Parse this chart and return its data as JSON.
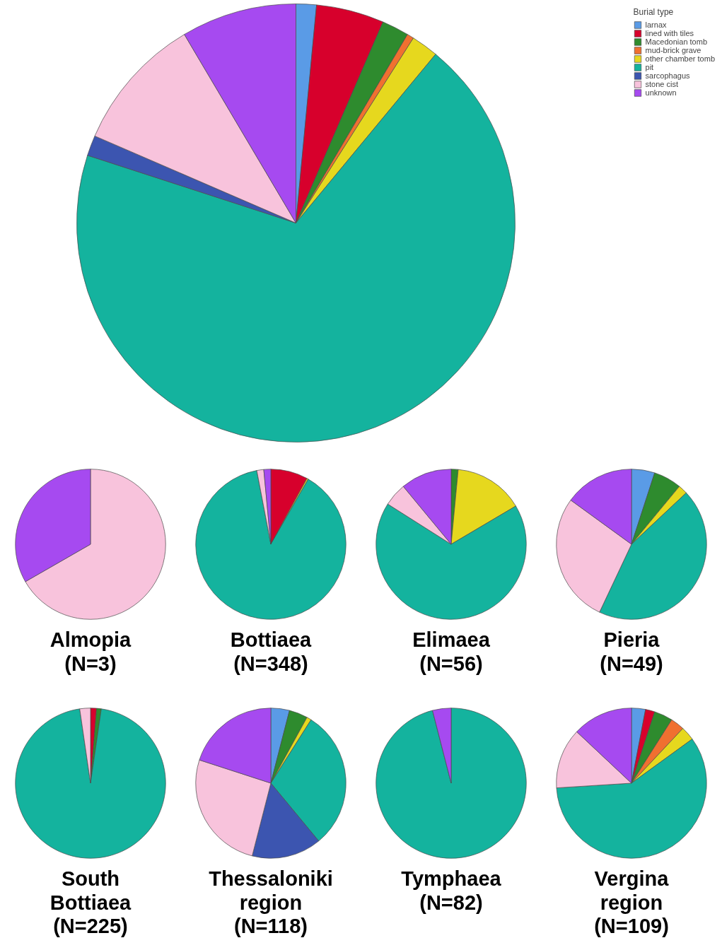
{
  "chart_data": [
    {
      "type": "pie",
      "legend": "top right",
      "legend_title": "Burial type",
      "categories": [
        "larnax",
        "lined with tiles",
        "Macedonian tomb",
        "mud-brick grave",
        "other chamber tomb",
        "pit",
        "sarcophagus",
        "stone cist",
        "unknown"
      ],
      "values": [
        1.5,
        5,
        2,
        0.5,
        2,
        69,
        1.5,
        10,
        8.5
      ],
      "colors": [
        "#5a9be6",
        "#d7002c",
        "#2e8b2e",
        "#f07030",
        "#e6d81e",
        "#14b39e",
        "#3c55b0",
        "#f8c3dc",
        "#a64af0"
      ]
    },
    {
      "type": "pie",
      "title": "Almopia\n(N=3)",
      "categories": [
        null,
        null
      ],
      "values": [
        66.7,
        33.3
      ],
      "colors": [
        "#f8c3dc",
        "#a64af0"
      ]
    },
    {
      "type": "pie",
      "title": "Bottiaea\n(N=348)",
      "categories": [
        null,
        null,
        null,
        null,
        null
      ],
      "values": [
        8,
        0.3,
        88.7,
        1.5,
        1.5
      ],
      "colors": [
        "#d7002c",
        "#e6d81e",
        "#14b39e",
        "#f8c3dc",
        "#a64af0"
      ]
    },
    {
      "type": "pie",
      "title": "Elimaea\n(N=56)",
      "categories": [
        null,
        null,
        null,
        null,
        null
      ],
      "values": [
        1.5,
        15,
        67.5,
        5,
        11
      ],
      "colors": [
        "#2e8b2e",
        "#e6d81e",
        "#14b39e",
        "#f8c3dc",
        "#a64af0"
      ]
    },
    {
      "type": "pie",
      "title": "Pieria\n(N=49)",
      "categories": [
        null,
        null,
        null,
        null,
        null,
        null
      ],
      "values": [
        5,
        6,
        2,
        44,
        28,
        15
      ],
      "colors": [
        "#5a9be6",
        "#2e8b2e",
        "#e6d81e",
        "#14b39e",
        "#f8c3dc",
        "#a64af0"
      ]
    },
    {
      "type": "pie",
      "title": "South\nBottiaea\n(N=225)",
      "categories": [
        null,
        null,
        null,
        null
      ],
      "values": [
        1.3,
        1,
        95.4,
        2.3
      ],
      "colors": [
        "#d7002c",
        "#2e8b2e",
        "#14b39e",
        "#f8c3dc"
      ]
    },
    {
      "type": "pie",
      "title": "Thessaloniki\nregion\n(N=118)",
      "categories": [
        null,
        null,
        null,
        null,
        null,
        null,
        null
      ],
      "values": [
        4,
        4,
        1,
        30,
        15,
        26,
        20
      ],
      "colors": [
        "#5a9be6",
        "#2e8b2e",
        "#e6d81e",
        "#14b39e",
        "#3c55b0",
        "#f8c3dc",
        "#a64af0"
      ]
    },
    {
      "type": "pie",
      "title": "Tymphaea\n(N=82)",
      "categories": [
        null,
        null
      ],
      "values": [
        96,
        4
      ],
      "colors": [
        "#14b39e",
        "#a64af0"
      ]
    },
    {
      "type": "pie",
      "title": "Vergina\nregion\n(N=109)",
      "categories": [
        null,
        null,
        null,
        null,
        null,
        null,
        null,
        null
      ],
      "values": [
        3,
        2,
        4,
        3,
        3,
        59,
        13,
        13
      ],
      "colors": [
        "#5a9be6",
        "#d7002c",
        "#2e8b2e",
        "#f07030",
        "#e6d81e",
        "#14b39e",
        "#f8c3dc",
        "#a64af0"
      ]
    }
  ]
}
